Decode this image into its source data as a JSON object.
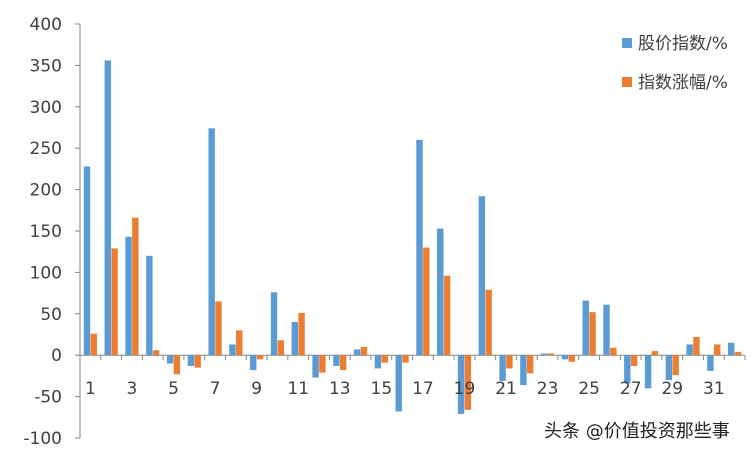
{
  "chart_data": {
    "type": "bar",
    "categories": [
      "1",
      "2",
      "3",
      "4",
      "5",
      "6",
      "7",
      "8",
      "9",
      "10",
      "11",
      "12",
      "13",
      "14",
      "15",
      "16",
      "17",
      "18",
      "19",
      "20",
      "21",
      "22",
      "23",
      "24",
      "25",
      "26",
      "27",
      "28",
      "29",
      "30",
      "31",
      "32"
    ],
    "x_tick_labels": [
      "1",
      "3",
      "5",
      "7",
      "9",
      "11",
      "13",
      "15",
      "17",
      "19",
      "21",
      "23",
      "25",
      "27",
      "29",
      "31"
    ],
    "series": [
      {
        "name": "股价指数/%",
        "color": "#5B9BD5",
        "values": [
          228,
          356,
          143,
          120,
          -10,
          -13,
          274,
          13,
          -18,
          76,
          40,
          -27,
          -13,
          7,
          -16,
          -68,
          260,
          153,
          -71,
          192,
          -31,
          -36,
          2,
          -5,
          66,
          61,
          -34,
          -40,
          -30,
          13,
          -19,
          15
        ]
      },
      {
        "name": "指数涨幅/%",
        "color": "#ED7D31",
        "values": [
          26,
          129,
          166,
          6,
          -23,
          -15,
          65,
          30,
          -5,
          18,
          51,
          -21,
          -18,
          10,
          -9,
          -9,
          130,
          96,
          -66,
          79,
          -16,
          -22,
          2,
          -8,
          52,
          9,
          -13,
          5,
          -24,
          22,
          13,
          4
        ]
      }
    ],
    "ylim": [
      -100,
      400
    ],
    "y_ticks": [
      "-100",
      "-50",
      "0",
      "50",
      "100",
      "150",
      "200",
      "250",
      "300",
      "350",
      "400"
    ],
    "grid": false,
    "legend_position": "top-right",
    "title": "",
    "xlabel": "",
    "ylabel": ""
  },
  "watermark": "头条 @价值投资那些事"
}
